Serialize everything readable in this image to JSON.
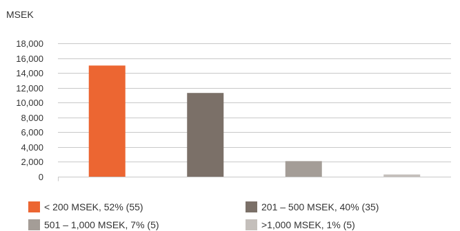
{
  "chart_data": {
    "type": "bar",
    "ylabel": "MSEK",
    "ylim": [
      0,
      18000
    ],
    "ytick_step": 2000,
    "yticks": [
      "0",
      "2,000",
      "4,000",
      "6,000",
      "8,000",
      "10,000",
      "12,000",
      "14,000",
      "16,000",
      "18,000"
    ],
    "grid": true,
    "legend_placement": "bottom",
    "categories": [
      "< 200 MSEK, 52% (55)",
      "201 – 500 MSEK, 40% (35)",
      "501 – 1,000 MSEK, 7% (5)",
      ">1,000 MSEK, 1% (5)"
    ],
    "values": [
      15000,
      11300,
      2100,
      300
    ],
    "colors": [
      "#ec6632",
      "#7b7068",
      "#a49d97",
      "#c4bfbb"
    ]
  }
}
